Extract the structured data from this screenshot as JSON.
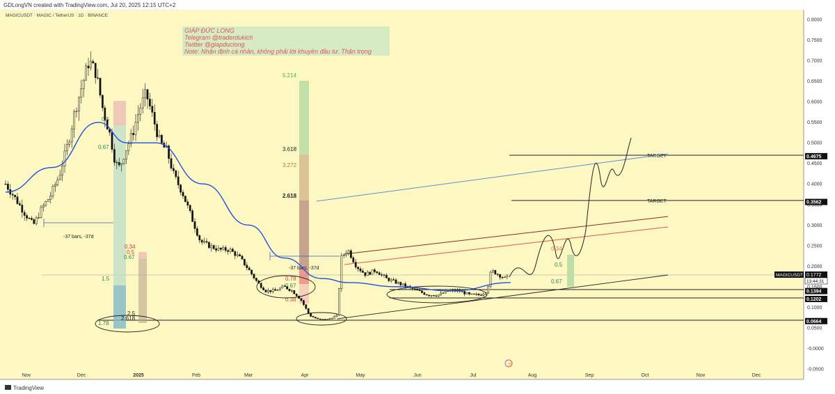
{
  "header": {
    "credit": "GDLongVN created with TradingView.com, Jul 20, 2025 12:15 UTC+2",
    "symbol_line": "MAGICUSDT · MAGIC / TetherUS · 1D · BINANCE"
  },
  "watermark": {
    "line1": "GIÁP ĐỨC LONG",
    "line2": "Telegram @traderdukich",
    "line3": "Twitter @giapduclong",
    "line4": "Note: Nhận định cá nhân, không phải lời khuyên đầu tư. Thận trọng"
  },
  "footer": {
    "brand": "TradingView"
  },
  "colors": {
    "background": "#fdf7c2",
    "candle_up": "#000000",
    "candle_down": "#000000",
    "ma_line": "#1f4fe0",
    "blue_channel": "#5b8fd6",
    "red_channel": "#c0392b",
    "fib_green": "#8fd18f",
    "fib_red": "#e57373"
  },
  "chart_data": {
    "type": "line",
    "symbol": "MAGICUSDT",
    "timeframe": "1D",
    "y_ticks": [
      "0.8000",
      "0.7500",
      "0.7000",
      "0.6500",
      "0.6000",
      "0.5500",
      "0.5000",
      "0.4500",
      "0.4000",
      "0.3500",
      "0.3000",
      "0.2500",
      "0.2000",
      "0.1500",
      "0.1000",
      "0.0500",
      "-0.0000",
      "-0.0500"
    ],
    "x_ticks": [
      "Nov",
      "Dec",
      "2025",
      "Feb",
      "Mar",
      "Apr",
      "May",
      "Jun",
      "Jul",
      "Aug",
      "Sep",
      "Oct",
      "Nov",
      "Dec"
    ],
    "ylim": [
      -0.05,
      0.82
    ],
    "price_labels": [
      {
        "value": 0.4675,
        "text": "0.4675"
      },
      {
        "value": 0.3562,
        "text": "0.3562"
      },
      {
        "value": 0.1394,
        "text": "0.1394"
      },
      {
        "value": 0.1202,
        "text": "0.1202"
      },
      {
        "value": 0.0664,
        "text": "0.0664"
      }
    ],
    "current_price": {
      "symbol": "MAGICUSDT",
      "value": 0.1772,
      "text": "0.1772",
      "countdown": "13:44:31"
    },
    "targets": [
      {
        "label": "TARGET",
        "value": 0.4675
      },
      {
        "label": "TARGET",
        "value": 0.3562
      }
    ],
    "fib_levels_main": [
      "5.214",
      "3.618",
      "3.272",
      "2.618",
      "0.78",
      "0.67",
      "0.38"
    ],
    "fib_levels_left": [
      "0.34",
      "0.67",
      "1.5",
      "1.78"
    ],
    "fib_levels_left2": [
      "0.34",
      "0.5",
      "0.67",
      "2.5",
      "2.618"
    ],
    "fib_levels_right": [
      "0.34",
      "0.5",
      "0.67"
    ],
    "annotations": [
      "-37 bars, -37d",
      "-37 bars, -37d"
    ],
    "ma_series_approx": [
      {
        "date": "2024-10-10",
        "value": 0.38
      },
      {
        "date": "2024-11-15",
        "value": 0.44
      },
      {
        "date": "2024-12-10",
        "value": 0.55
      },
      {
        "date": "2024-12-25",
        "value": 0.5
      },
      {
        "date": "2025-01-10",
        "value": 0.5
      },
      {
        "date": "2025-02-05",
        "value": 0.4
      },
      {
        "date": "2025-03-01",
        "value": 0.3
      },
      {
        "date": "2025-03-20",
        "value": 0.22
      },
      {
        "date": "2025-04-10",
        "value": 0.17
      },
      {
        "date": "2025-04-25",
        "value": 0.16
      },
      {
        "date": "2025-05-20",
        "value": 0.15
      },
      {
        "date": "2025-06-20",
        "value": 0.14
      },
      {
        "date": "2025-07-20",
        "value": 0.16
      }
    ]
  }
}
